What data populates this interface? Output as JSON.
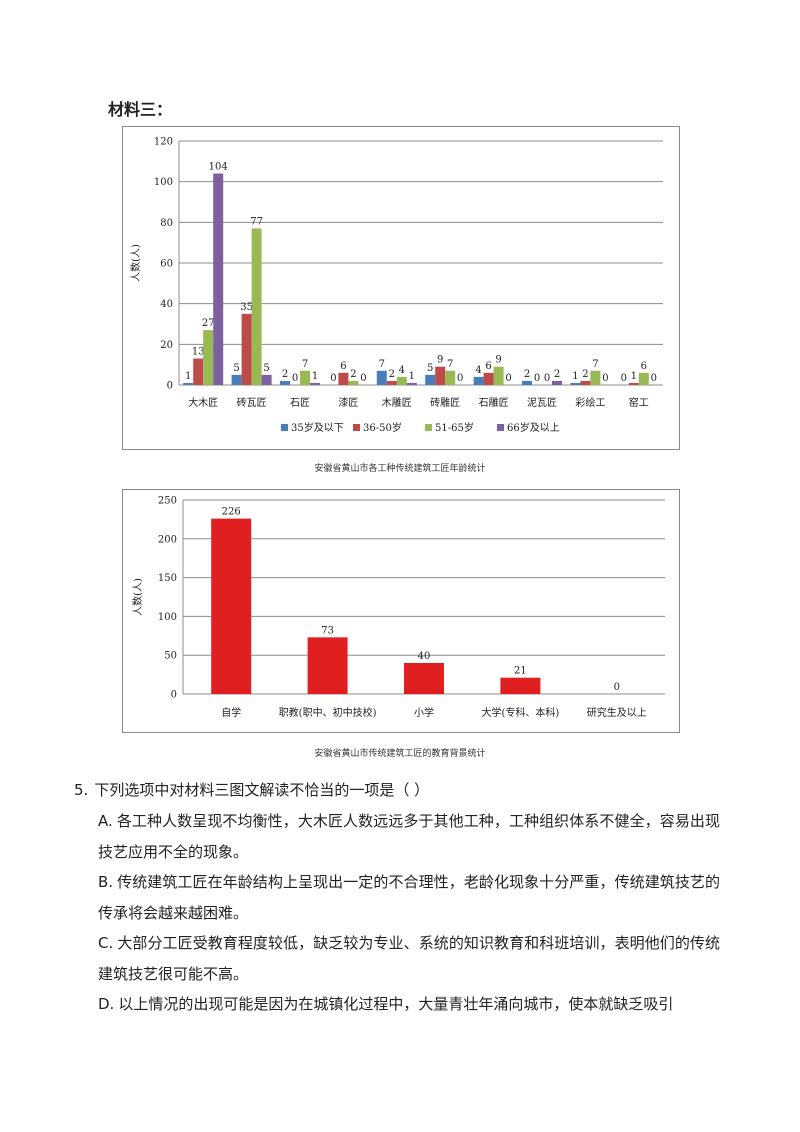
{
  "material_label": "材料三：",
  "charts": {
    "age": {
      "caption": "安徽省黄山市各工种传统建筑工匠年龄统计",
      "ylabel": "人数(人)"
    },
    "education": {
      "caption": "安徽省黄山市传统建筑工匠的教育背景统计",
      "ylabel": "人数(人)"
    }
  },
  "chart_data": [
    {
      "type": "bar",
      "title": "",
      "ylabel": "人数(人)",
      "ylim": [
        0,
        120
      ],
      "yticks": [
        0,
        20,
        40,
        60,
        80,
        100,
        120
      ],
      "grid": true,
      "legend": "bottom",
      "categories": [
        "大木匠",
        "砖瓦匠",
        "石匠",
        "漆匠",
        "木雕匠",
        "砖雕匠",
        "石雕匠",
        "泥瓦匠",
        "彩绘工",
        "窑工"
      ],
      "series": [
        {
          "name": "35岁及以下",
          "color": "#4a7ebb",
          "values": [
            1,
            5,
            2,
            0,
            7,
            5,
            4,
            2,
            1,
            0
          ]
        },
        {
          "name": "36-50岁",
          "color": "#be4b48",
          "values": [
            13,
            35,
            0,
            6,
            2,
            9,
            6,
            0,
            2,
            1
          ]
        },
        {
          "name": "51-65岁",
          "color": "#98b954",
          "values": [
            27,
            77,
            7,
            2,
            4,
            7,
            9,
            0,
            7,
            6
          ]
        },
        {
          "name": "66岁及以上",
          "color": "#7d60a0",
          "values": [
            104,
            5,
            1,
            0,
            1,
            0,
            0,
            2,
            0,
            0
          ]
        }
      ]
    },
    {
      "type": "bar",
      "title": "",
      "ylabel": "人数(人)",
      "ylim": [
        0,
        250
      ],
      "yticks": [
        0,
        50,
        100,
        150,
        200,
        250
      ],
      "grid": true,
      "categories": [
        "自学",
        "职教(职中、初中技校)",
        "小学",
        "大学(专科、本科)",
        "研究生及以上"
      ],
      "series": [
        {
          "color": "#e02020",
          "values": [
            226,
            73,
            40,
            21,
            0
          ]
        }
      ]
    }
  ],
  "question": {
    "number": "5.",
    "stem": "下列选项中对材料三图文解读不恰当的一项是（   ）",
    "options": [
      {
        "letter": "A.",
        "text": "各工种人数呈现不均衡性，大木匠人数远远多于其他工种，工种组织体系不健全，容易出现技艺应用不全的现象。"
      },
      {
        "letter": "B.",
        "text": "传统建筑工匠在年龄结构上呈现出一定的不合理性，老龄化现象十分严重，传统建筑技艺的传承将会越来越困难。"
      },
      {
        "letter": "C.",
        "text": "大部分工匠受教育程度较低，缺乏较为专业、系统的知识教育和科班培训，表明他们的传统建筑技艺很可能不高。"
      },
      {
        "letter": "D.",
        "text": "以上情况的出现可能是因为在城镇化过程中，大量青壮年涌向城市，使本就缺乏吸引"
      }
    ]
  }
}
